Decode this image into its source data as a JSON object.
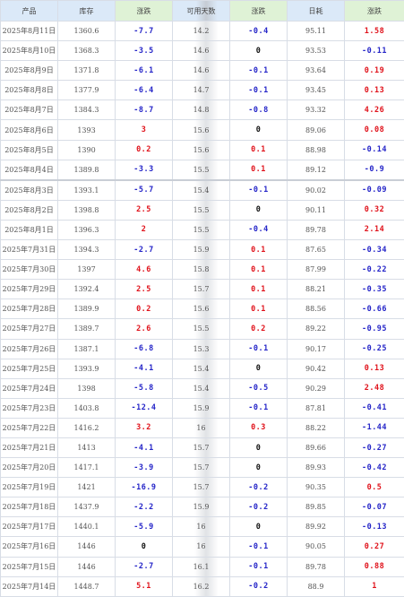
{
  "headers": [
    "产品",
    "库存",
    "涨跌",
    "可用天数",
    "涨跌",
    "日耗",
    "涨跌"
  ],
  "colors": {
    "up": "#e0121b",
    "down": "#2525c8",
    "flat": "#111111",
    "header": "#dbe9f8",
    "header_highlight": "#dff2d6"
  },
  "rows": [
    {
      "date": "2025年8月11日",
      "stock": "1360.6",
      "stock_chg": "-7.7",
      "days": "14.2",
      "days_chg": "-0.4",
      "consumption": "95.11",
      "cons_chg": "1.58"
    },
    {
      "date": "2025年8月10日",
      "stock": "1368.3",
      "stock_chg": "-3.5",
      "days": "14.6",
      "days_chg": "0",
      "consumption": "93.53",
      "cons_chg": "-0.11"
    },
    {
      "date": "2025年8月9日",
      "stock": "1371.8",
      "stock_chg": "-6.1",
      "days": "14.6",
      "days_chg": "-0.1",
      "consumption": "93.64",
      "cons_chg": "0.19"
    },
    {
      "date": "2025年8月8日",
      "stock": "1377.9",
      "stock_chg": "-6.4",
      "days": "14.7",
      "days_chg": "-0.1",
      "consumption": "93.45",
      "cons_chg": "0.13"
    },
    {
      "date": "2025年8月7日",
      "stock": "1384.3",
      "stock_chg": "-8.7",
      "days": "14.8",
      "days_chg": "-0.8",
      "consumption": "93.32",
      "cons_chg": "4.26"
    },
    {
      "date": "2025年8月6日",
      "stock": "1393",
      "stock_chg": "3",
      "days": "15.6",
      "days_chg": "0",
      "consumption": "89.06",
      "cons_chg": "0.08"
    },
    {
      "date": "2025年8月5日",
      "stock": "1390",
      "stock_chg": "0.2",
      "days": "15.6",
      "days_chg": "0.1",
      "consumption": "88.98",
      "cons_chg": "-0.14"
    },
    {
      "date": "2025年8月4日",
      "stock": "1389.8",
      "stock_chg": "-3.3",
      "days": "15.5",
      "days_chg": "0.1",
      "consumption": "89.12",
      "cons_chg": "-0.9"
    },
    {
      "date": "2025年8月3日",
      "stock": "1393.1",
      "stock_chg": "-5.7",
      "days": "15.4",
      "days_chg": "-0.1",
      "consumption": "90.02",
      "cons_chg": "-0.09"
    },
    {
      "date": "2025年8月2日",
      "stock": "1398.8",
      "stock_chg": "2.5",
      "days": "15.5",
      "days_chg": "0",
      "consumption": "90.11",
      "cons_chg": "0.32"
    },
    {
      "date": "2025年8月1日",
      "stock": "1396.3",
      "stock_chg": "2",
      "days": "15.5",
      "days_chg": "-0.4",
      "consumption": "89.78",
      "cons_chg": "2.14"
    },
    {
      "date": "2025年7月31日",
      "stock": "1394.3",
      "stock_chg": "-2.7",
      "days": "15.9",
      "days_chg": "0.1",
      "consumption": "87.65",
      "cons_chg": "-0.34"
    },
    {
      "date": "2025年7月30日",
      "stock": "1397",
      "stock_chg": "4.6",
      "days": "15.8",
      "days_chg": "0.1",
      "consumption": "87.99",
      "cons_chg": "-0.22"
    },
    {
      "date": "2025年7月29日",
      "stock": "1392.4",
      "stock_chg": "2.5",
      "days": "15.7",
      "days_chg": "0.1",
      "consumption": "88.21",
      "cons_chg": "-0.35"
    },
    {
      "date": "2025年7月28日",
      "stock": "1389.9",
      "stock_chg": "0.2",
      "days": "15.6",
      "days_chg": "0.1",
      "consumption": "88.56",
      "cons_chg": "-0.66"
    },
    {
      "date": "2025年7月27日",
      "stock": "1389.7",
      "stock_chg": "2.6",
      "days": "15.5",
      "days_chg": "0.2",
      "consumption": "89.22",
      "cons_chg": "-0.95"
    },
    {
      "date": "2025年7月26日",
      "stock": "1387.1",
      "stock_chg": "-6.8",
      "days": "15.3",
      "days_chg": "-0.1",
      "consumption": "90.17",
      "cons_chg": "-0.25"
    },
    {
      "date": "2025年7月25日",
      "stock": "1393.9",
      "stock_chg": "-4.1",
      "days": "15.4",
      "days_chg": "0",
      "consumption": "90.42",
      "cons_chg": "0.13"
    },
    {
      "date": "2025年7月24日",
      "stock": "1398",
      "stock_chg": "-5.8",
      "days": "15.4",
      "days_chg": "-0.5",
      "consumption": "90.29",
      "cons_chg": "2.48"
    },
    {
      "date": "2025年7月23日",
      "stock": "1403.8",
      "stock_chg": "-12.4",
      "days": "15.9",
      "days_chg": "-0.1",
      "consumption": "87.81",
      "cons_chg": "-0.41"
    },
    {
      "date": "2025年7月22日",
      "stock": "1416.2",
      "stock_chg": "3.2",
      "days": "16",
      "days_chg": "0.3",
      "consumption": "88.22",
      "cons_chg": "-1.44"
    },
    {
      "date": "2025年7月21日",
      "stock": "1413",
      "stock_chg": "-4.1",
      "days": "15.7",
      "days_chg": "0",
      "consumption": "89.66",
      "cons_chg": "-0.27"
    },
    {
      "date": "2025年7月20日",
      "stock": "1417.1",
      "stock_chg": "-3.9",
      "days": "15.7",
      "days_chg": "0",
      "consumption": "89.93",
      "cons_chg": "-0.42"
    },
    {
      "date": "2025年7月19日",
      "stock": "1421",
      "stock_chg": "-16.9",
      "days": "15.7",
      "days_chg": "-0.2",
      "consumption": "90.35",
      "cons_chg": "0.5"
    },
    {
      "date": "2025年7月18日",
      "stock": "1437.9",
      "stock_chg": "-2.2",
      "days": "15.9",
      "days_chg": "-0.2",
      "consumption": "89.85",
      "cons_chg": "-0.07"
    },
    {
      "date": "2025年7月17日",
      "stock": "1440.1",
      "stock_chg": "-5.9",
      "days": "16",
      "days_chg": "0",
      "consumption": "89.92",
      "cons_chg": "-0.13"
    },
    {
      "date": "2025年7月16日",
      "stock": "1446",
      "stock_chg": "0",
      "days": "16",
      "days_chg": "-0.1",
      "consumption": "90.05",
      "cons_chg": "0.27"
    },
    {
      "date": "2025年7月15日",
      "stock": "1446",
      "stock_chg": "-2.7",
      "days": "16.1",
      "days_chg": "-0.1",
      "consumption": "89.78",
      "cons_chg": "0.88"
    },
    {
      "date": "2025年7月14日",
      "stock": "1448.7",
      "stock_chg": "5.1",
      "days": "16.2",
      "days_chg": "-0.2",
      "consumption": "88.9",
      "cons_chg": "1"
    }
  ]
}
